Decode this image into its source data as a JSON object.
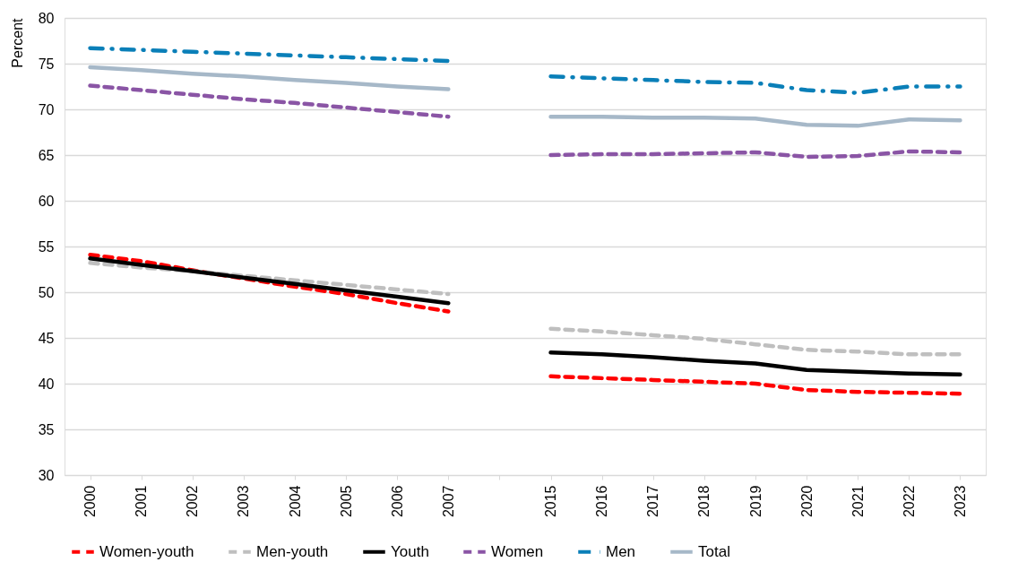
{
  "chart_data": {
    "type": "line",
    "ylabel": "Percent",
    "categories": [
      "2000",
      "2001",
      "2002",
      "2003",
      "2004",
      "2005",
      "2006",
      "2007",
      null,
      "2015",
      "2016",
      "2017",
      "2018",
      "2019",
      "2020",
      "2021",
      "2022",
      "2023"
    ],
    "ylim": [
      30,
      80
    ],
    "yticks": [
      30,
      35,
      40,
      45,
      50,
      55,
      60,
      65,
      70,
      75,
      80
    ],
    "grid": "y",
    "legend": "bottom",
    "marker": "none",
    "series": [
      {
        "name": "Women-youth",
        "color": "#ff0000",
        "line_style": "dashed",
        "values": [
          54.1,
          53.4,
          52.4,
          51.5,
          50.6,
          49.8,
          48.8,
          47.9,
          null,
          40.8,
          40.6,
          40.4,
          40.2,
          40.0,
          39.3,
          39.1,
          39.0,
          38.9
        ]
      },
      {
        "name": "Men-youth",
        "color": "#bfbfbf",
        "line_style": "dashed",
        "values": [
          53.2,
          52.7,
          52.3,
          51.8,
          51.3,
          50.8,
          50.3,
          49.8,
          null,
          46.0,
          45.7,
          45.3,
          44.9,
          44.3,
          43.7,
          43.5,
          43.2,
          43.2
        ]
      },
      {
        "name": "Youth",
        "color": "#000000",
        "line_style": "solid",
        "values": [
          53.7,
          53.0,
          52.3,
          51.6,
          50.9,
          50.2,
          49.5,
          48.8,
          null,
          43.4,
          43.2,
          42.9,
          42.5,
          42.2,
          41.5,
          41.3,
          41.1,
          41.0
        ]
      },
      {
        "name": "Women",
        "color": "#8a55a5",
        "line_style": "dashed",
        "values": [
          72.6,
          72.1,
          71.6,
          71.1,
          70.7,
          70.2,
          69.7,
          69.2,
          null,
          65.0,
          65.1,
          65.1,
          65.2,
          65.3,
          64.8,
          64.9,
          65.4,
          65.3
        ]
      },
      {
        "name": "Men",
        "color": "#0a7fb8",
        "line_style": "dashdot",
        "values": [
          76.7,
          76.5,
          76.3,
          76.1,
          75.9,
          75.7,
          75.5,
          75.3,
          null,
          73.6,
          73.4,
          73.2,
          73.0,
          72.9,
          72.1,
          71.8,
          72.5,
          72.5
        ]
      },
      {
        "name": "Total",
        "color": "#a6b8c8",
        "line_style": "solid",
        "values": [
          74.6,
          74.3,
          73.9,
          73.6,
          73.2,
          72.9,
          72.5,
          72.2,
          null,
          69.2,
          69.2,
          69.1,
          69.1,
          69.0,
          68.3,
          68.2,
          68.9,
          68.8
        ]
      }
    ]
  }
}
